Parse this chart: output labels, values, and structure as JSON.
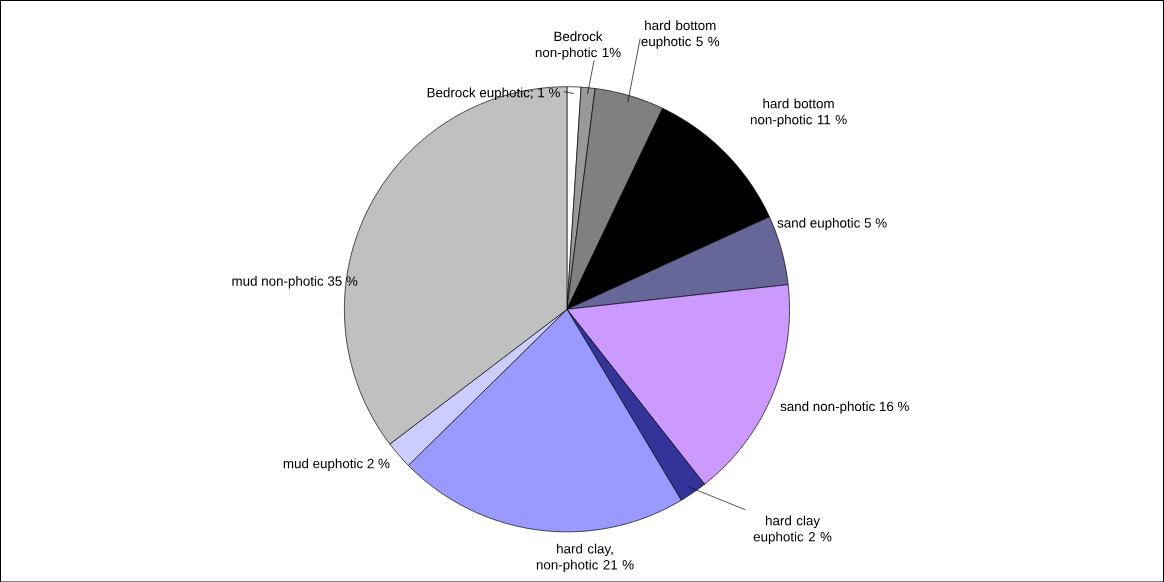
{
  "chart_data": {
    "type": "pie",
    "categories": [
      "Bedrock euphotic",
      "Bedrock non-photic",
      "hard bottom euphotic",
      "hard bottom non-photic",
      "sand euphotic",
      "sand non-photic",
      "hard clay euphotic",
      "hard clay, non-photic",
      "mud euphotic",
      "mud non-photic"
    ],
    "values": [
      1,
      1,
      5,
      11,
      5,
      16,
      2,
      21,
      2,
      35
    ],
    "value_labels": [
      "; 1 %",
      "1%",
      "5 %",
      "11 %",
      "5 %",
      "16 %",
      "2 %",
      "21 %",
      "2 %",
      "35 %"
    ],
    "colors": [
      "#ffffff",
      "#999999",
      "#808080",
      "#000000",
      "#666699",
      "#cc99ff",
      "#333399",
      "#9999ff",
      "#ccccff",
      "#c0c0c0"
    ]
  }
}
